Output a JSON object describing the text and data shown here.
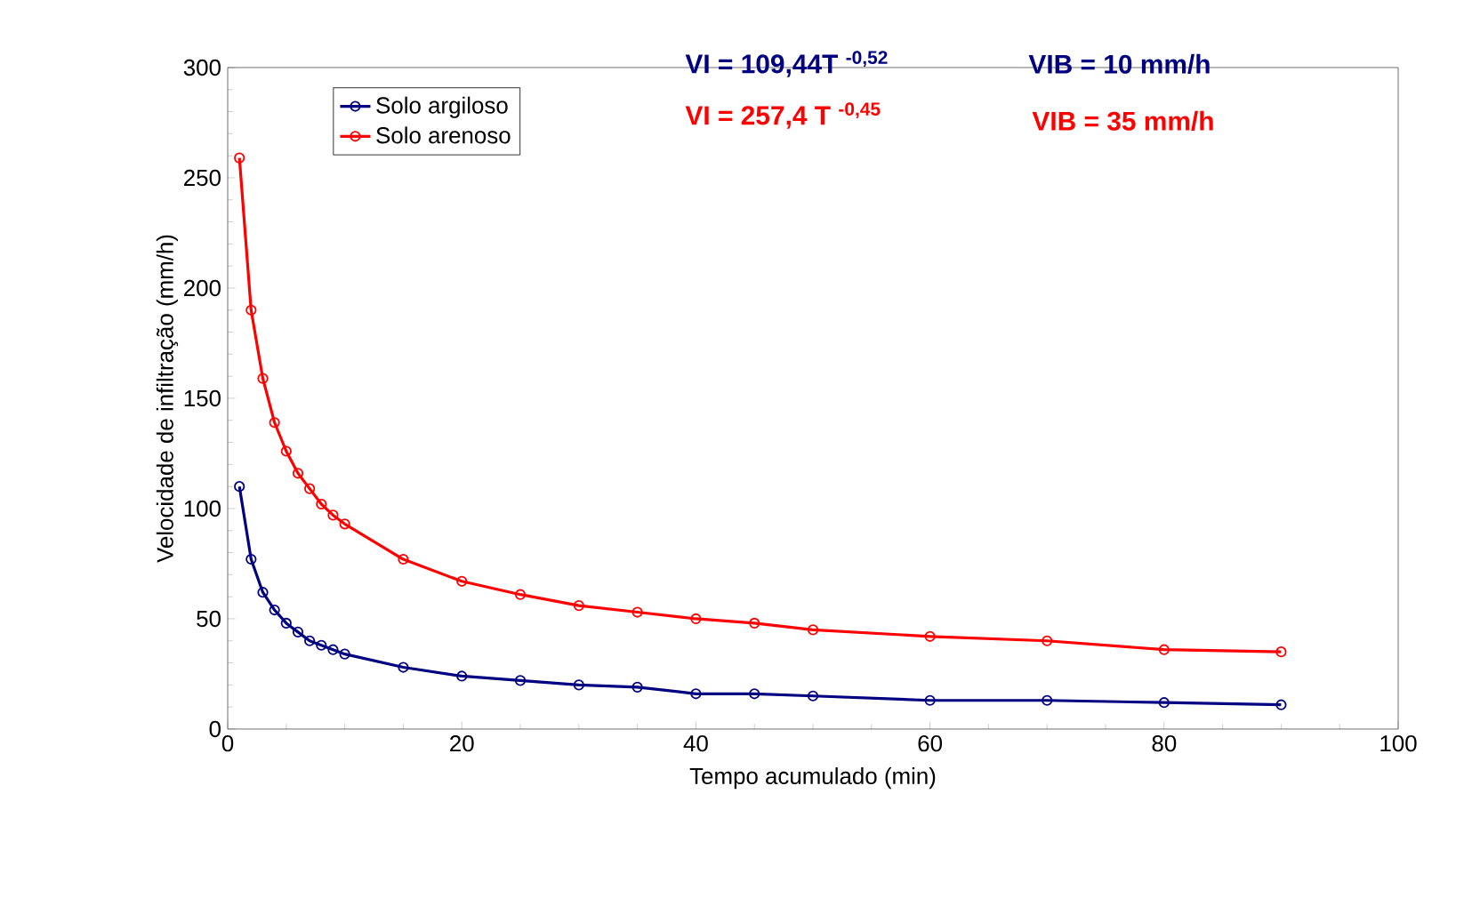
{
  "chart_data": {
    "type": "line",
    "xlabel": "Tempo acumulado (min)",
    "ylabel": "Velocidade de infiltração (mm/h)",
    "x": [
      1,
      2,
      3,
      4,
      5,
      6,
      7,
      8,
      9,
      10,
      15,
      20,
      25,
      30,
      35,
      40,
      45,
      50,
      60,
      70,
      80,
      90
    ],
    "series": [
      {
        "name": "Solo argiloso",
        "color": "#000080",
        "values": [
          110,
          77,
          62,
          54,
          48,
          44,
          40,
          38,
          36,
          34,
          28,
          24,
          22,
          20,
          19,
          16,
          16,
          15,
          13,
          13,
          12,
          11
        ]
      },
      {
        "name": "Solo arenoso",
        "color": "#ff0000",
        "values": [
          259,
          190,
          159,
          139,
          126,
          116,
          109,
          102,
          97,
          93,
          77,
          67,
          61,
          56,
          53,
          50,
          48,
          45,
          42,
          40,
          36,
          35
        ]
      }
    ],
    "xlim": [
      0,
      100
    ],
    "xticks": [
      0,
      20,
      40,
      60,
      80,
      100
    ],
    "ylim": [
      0,
      300
    ],
    "yticks": [
      0,
      50,
      100,
      150,
      200,
      250,
      300
    ],
    "marker": "circle",
    "legend": "top left",
    "annotations": [
      "VI = 109,44T $^{-0,52}$",
      "VIB = 10 mm/h",
      "VI = 257,4 T $^{-0,45}$",
      "VIB = 35 mm/h"
    ]
  }
}
